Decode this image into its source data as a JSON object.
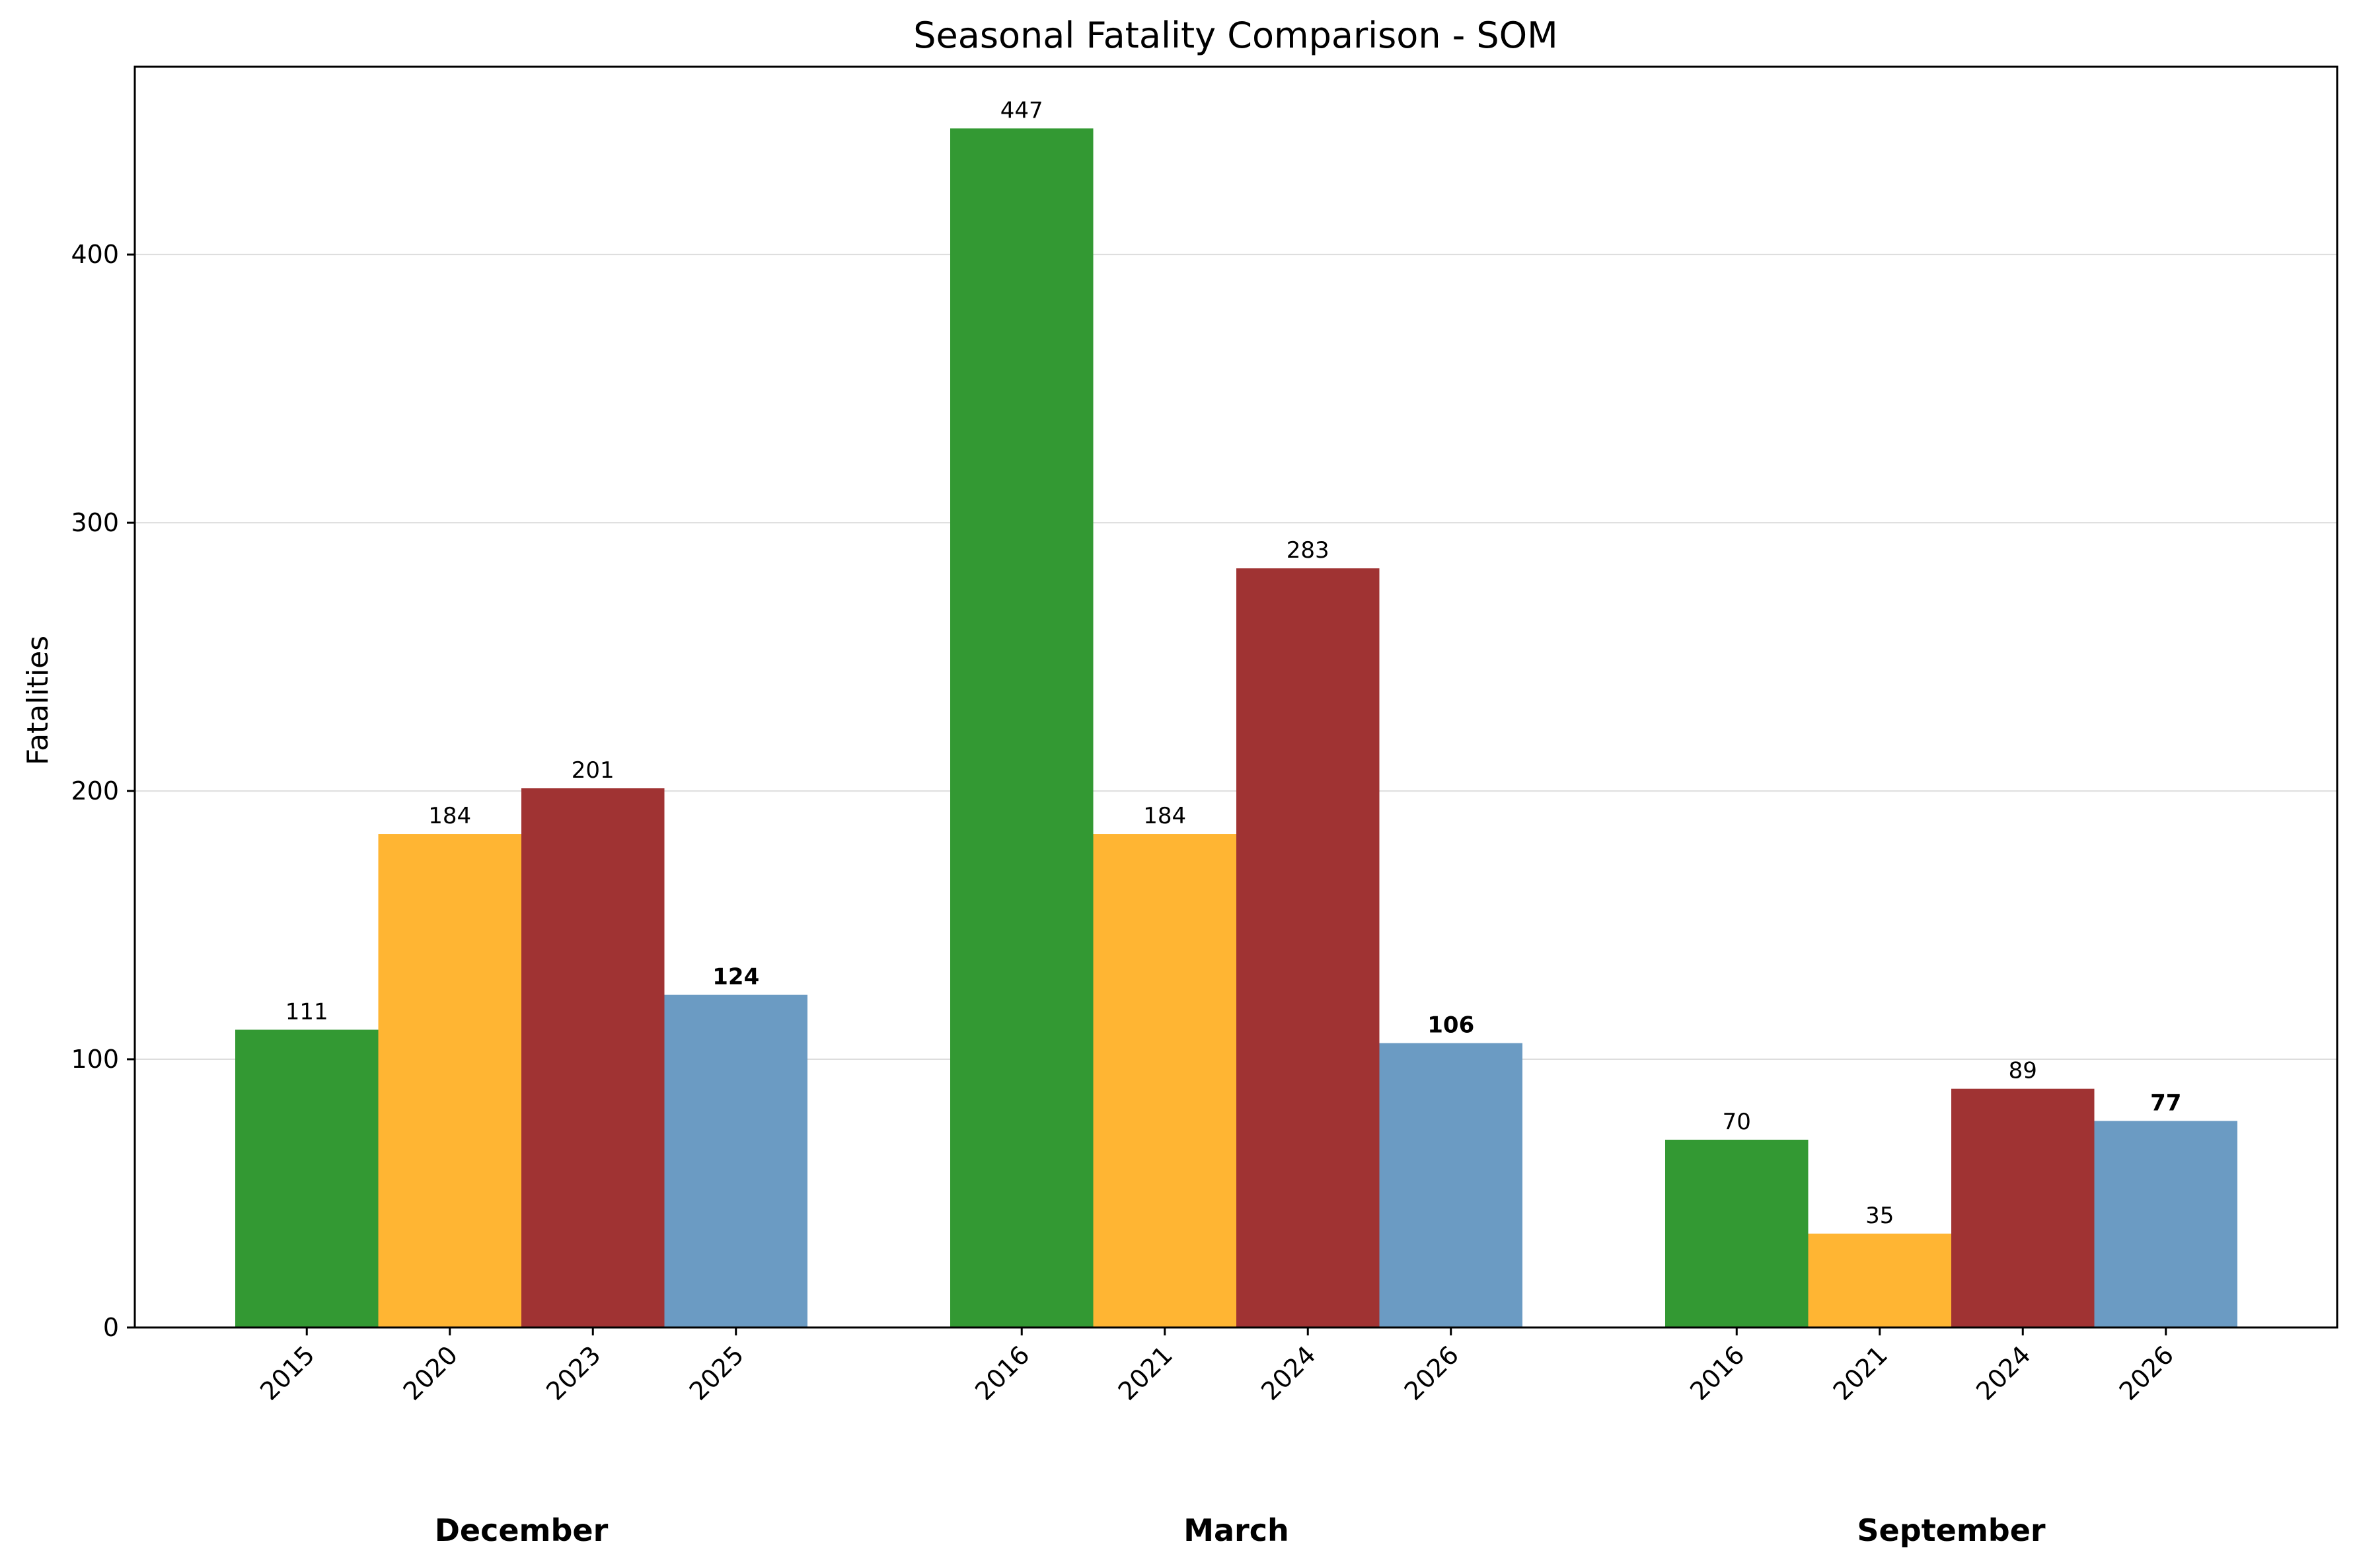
{
  "chart_data": {
    "type": "bar",
    "title": "Seasonal Fatality Comparison - SOM",
    "xlabel": "",
    "ylabel": "Fatalities",
    "ylim": [
      0,
      470
    ],
    "yticks": [
      0,
      100,
      200,
      300,
      400
    ],
    "grid": "horizontal",
    "colors": [
      "#339933",
      "#ffb533",
      "#a03333",
      "#6b9bc3"
    ],
    "groups": [
      {
        "name": "December",
        "bars": [
          {
            "year": "2015",
            "value": 111,
            "label": "111",
            "bold": false
          },
          {
            "year": "2020",
            "value": 184,
            "label": "184",
            "bold": false
          },
          {
            "year": "2023",
            "value": 201,
            "label": "201",
            "bold": false
          },
          {
            "year": "2025",
            "value": 124,
            "label": "124",
            "bold": true
          }
        ]
      },
      {
        "name": "March",
        "bars": [
          {
            "year": "2016",
            "value": 447,
            "label": "447",
            "bold": false
          },
          {
            "year": "2021",
            "value": 184,
            "label": "184",
            "bold": false
          },
          {
            "year": "2024",
            "value": 283,
            "label": "283",
            "bold": false
          },
          {
            "year": "2026",
            "value": 106,
            "label": "106",
            "bold": true
          }
        ]
      },
      {
        "name": "September",
        "bars": [
          {
            "year": "2016",
            "value": 70,
            "label": "70",
            "bold": false
          },
          {
            "year": "2021",
            "value": 35,
            "label": "35",
            "bold": false
          },
          {
            "year": "2024",
            "value": 89,
            "label": "89",
            "bold": false
          },
          {
            "year": "2026",
            "value": 77,
            "label": "77",
            "bold": true
          }
        ]
      }
    ]
  }
}
